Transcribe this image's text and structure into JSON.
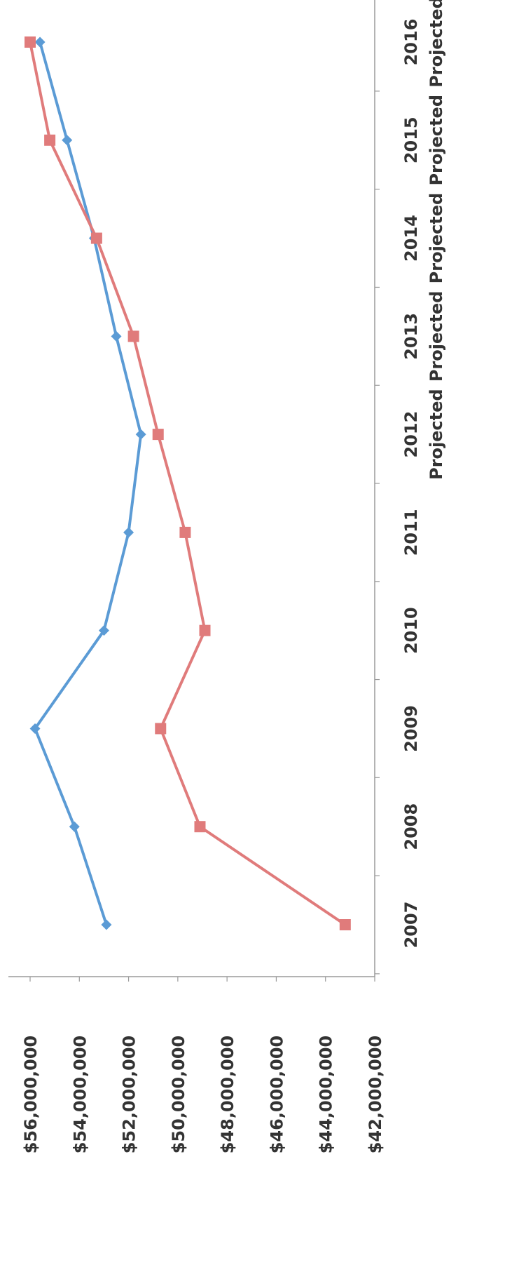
{
  "chart_data": {
    "type": "line",
    "categories": [
      [
        "2007"
      ],
      [
        "2008"
      ],
      [
        "2009"
      ],
      [
        "2010"
      ],
      [
        "2011"
      ],
      [
        "2012",
        "Projected"
      ],
      [
        "2013",
        "Projected"
      ],
      [
        "2014",
        "Projected"
      ],
      [
        "2015",
        "Projected"
      ],
      [
        "2016",
        "Projected"
      ]
    ],
    "series": [
      {
        "color": "#5b9bd5",
        "marker": "diamond",
        "values": [
          52900000,
          54200000,
          55800000,
          53000000,
          52000000,
          51500000,
          52500000,
          53400000,
          54500000,
          55600000
        ]
      },
      {
        "color": "#e07b7b",
        "marker": "square",
        "values": [
          43200000,
          49100000,
          50700000,
          48900000,
          49700000,
          50800000,
          51800000,
          53300000,
          55200000,
          56000000
        ]
      }
    ],
    "value_axis": {
      "min": 42000000,
      "max": 56000000,
      "step": 2000000,
      "tick_labels": [
        "$42,000,000",
        "$44,000,000",
        "$46,000,000",
        "$48,000,000",
        "$50,000,000",
        "$52,000,000",
        "$54,000,000",
        "$56,000,000"
      ]
    },
    "grid": false,
    "legend": "none",
    "orientation": "rotated-90-ccw"
  }
}
